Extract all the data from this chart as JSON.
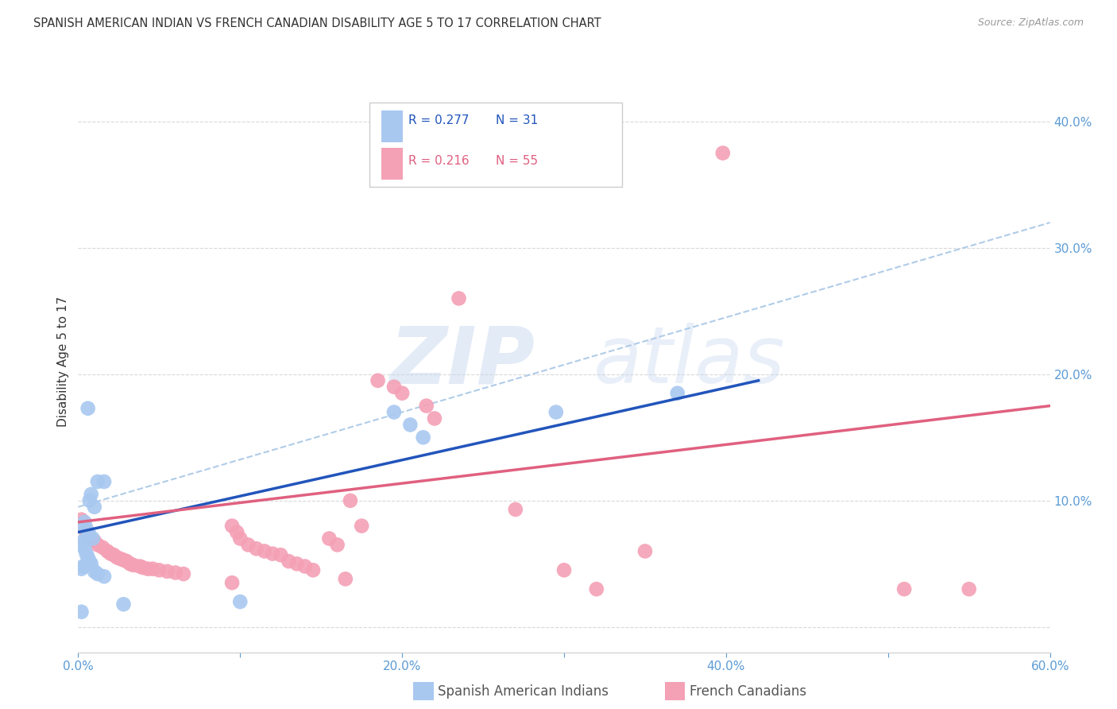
{
  "title": "SPANISH AMERICAN INDIAN VS FRENCH CANADIAN DISABILITY AGE 5 TO 17 CORRELATION CHART",
  "source": "Source: ZipAtlas.com",
  "ylabel": "Disability Age 5 to 17",
  "xlim": [
    0.0,
    0.6
  ],
  "ylim": [
    -0.02,
    0.44
  ],
  "xtick_positions": [
    0.0,
    0.1,
    0.2,
    0.3,
    0.4,
    0.5,
    0.6
  ],
  "xtick_labels": [
    "0.0%",
    "",
    "20.0%",
    "",
    "40.0%",
    "",
    "60.0%"
  ],
  "ytick_positions": [
    0.0,
    0.1,
    0.2,
    0.3,
    0.4
  ],
  "ytick_labels_right": [
    "",
    "10.0%",
    "20.0%",
    "30.0%",
    "40.0%"
  ],
  "background_color": "#ffffff",
  "grid_color": "#d9d9d9",
  "tick_label_color": "#5b9bd5",
  "legend_blue_r": "R = 0.277",
  "legend_blue_n": "N = 31",
  "legend_pink_r": "R = 0.216",
  "legend_pink_n": "N = 55",
  "blue_scatter_color": "#a8c8f0",
  "pink_scatter_color": "#f4a0b5",
  "blue_line_color": "#2255bb",
  "pink_line_color": "#e06080",
  "blue_dashed_color": "#b0cce8",
  "blue_scatter": [
    [
      0.006,
      0.173
    ],
    [
      0.012,
      0.115
    ],
    [
      0.016,
      0.115
    ],
    [
      0.007,
      0.1
    ],
    [
      0.008,
      0.105
    ],
    [
      0.01,
      0.095
    ],
    [
      0.003,
      0.08
    ],
    [
      0.004,
      0.083
    ],
    [
      0.005,
      0.078
    ],
    [
      0.007,
      0.073
    ],
    [
      0.009,
      0.07
    ],
    [
      0.003,
      0.068
    ],
    [
      0.002,
      0.065
    ],
    [
      0.004,
      0.062
    ],
    [
      0.005,
      0.058
    ],
    [
      0.006,
      0.055
    ],
    [
      0.007,
      0.052
    ],
    [
      0.008,
      0.05
    ],
    [
      0.003,
      0.048
    ],
    [
      0.002,
      0.046
    ],
    [
      0.01,
      0.044
    ],
    [
      0.012,
      0.042
    ],
    [
      0.016,
      0.04
    ],
    [
      0.195,
      0.17
    ],
    [
      0.205,
      0.16
    ],
    [
      0.213,
      0.15
    ],
    [
      0.1,
      0.02
    ],
    [
      0.028,
      0.018
    ],
    [
      0.295,
      0.17
    ],
    [
      0.37,
      0.185
    ],
    [
      0.002,
      0.012
    ]
  ],
  "pink_scatter": [
    [
      0.002,
      0.085
    ],
    [
      0.003,
      0.08
    ],
    [
      0.005,
      0.075
    ],
    [
      0.007,
      0.07
    ],
    [
      0.01,
      0.068
    ],
    [
      0.012,
      0.065
    ],
    [
      0.015,
      0.063
    ],
    [
      0.018,
      0.06
    ],
    [
      0.02,
      0.058
    ],
    [
      0.022,
      0.057
    ],
    [
      0.024,
      0.055
    ],
    [
      0.026,
      0.054
    ],
    [
      0.028,
      0.053
    ],
    [
      0.03,
      0.052
    ],
    [
      0.032,
      0.05
    ],
    [
      0.034,
      0.049
    ],
    [
      0.038,
      0.048
    ],
    [
      0.04,
      0.047
    ],
    [
      0.043,
      0.046
    ],
    [
      0.046,
      0.046
    ],
    [
      0.05,
      0.045
    ],
    [
      0.055,
      0.044
    ],
    [
      0.06,
      0.043
    ],
    [
      0.065,
      0.042
    ],
    [
      0.095,
      0.08
    ],
    [
      0.098,
      0.075
    ],
    [
      0.1,
      0.07
    ],
    [
      0.105,
      0.065
    ],
    [
      0.11,
      0.062
    ],
    [
      0.115,
      0.06
    ],
    [
      0.12,
      0.058
    ],
    [
      0.125,
      0.057
    ],
    [
      0.13,
      0.052
    ],
    [
      0.135,
      0.05
    ],
    [
      0.14,
      0.048
    ],
    [
      0.145,
      0.045
    ],
    [
      0.155,
      0.07
    ],
    [
      0.16,
      0.065
    ],
    [
      0.168,
      0.1
    ],
    [
      0.175,
      0.08
    ],
    [
      0.185,
      0.195
    ],
    [
      0.195,
      0.19
    ],
    [
      0.2,
      0.185
    ],
    [
      0.215,
      0.175
    ],
    [
      0.22,
      0.165
    ],
    [
      0.235,
      0.26
    ],
    [
      0.095,
      0.035
    ],
    [
      0.165,
      0.038
    ],
    [
      0.27,
      0.093
    ],
    [
      0.3,
      0.045
    ],
    [
      0.32,
      0.03
    ],
    [
      0.35,
      0.06
    ],
    [
      0.398,
      0.375
    ],
    [
      0.51,
      0.03
    ],
    [
      0.55,
      0.03
    ]
  ],
  "blue_trendline": [
    [
      0.0,
      0.075
    ],
    [
      0.42,
      0.195
    ]
  ],
  "blue_dashed_trendline": [
    [
      0.0,
      0.095
    ],
    [
      0.6,
      0.32
    ]
  ],
  "pink_trendline": [
    [
      0.0,
      0.083
    ],
    [
      0.6,
      0.175
    ]
  ]
}
